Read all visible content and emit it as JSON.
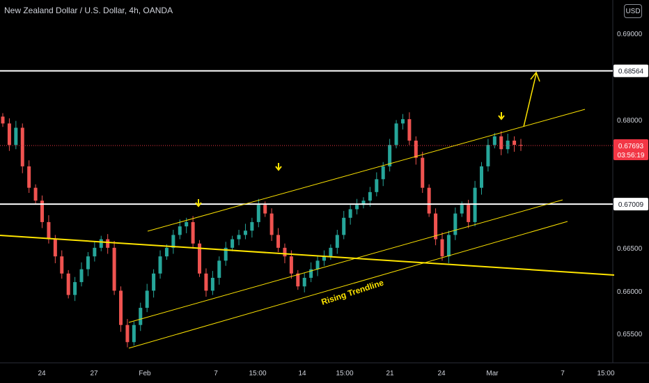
{
  "header": {
    "title": "New Zealand Dollar / U.S. Dollar, 4h, OANDA",
    "currency_button": "USD"
  },
  "price_label": {
    "price": "0.67693",
    "countdown": "03:56:19"
  },
  "colors": {
    "up": "#26a69a",
    "down": "#ef5350",
    "level": "#ffffff",
    "drawing": "#ffe500",
    "current": "#f23645",
    "axis_text": "#d1d4dc"
  },
  "chart_data": {
    "type": "candlestick",
    "title": "New Zealand Dollar / U.S. Dollar, 4h, OANDA",
    "y_ticks": [
      "0.69000",
      "0.68000",
      "0.66500",
      "0.66000",
      "0.65500"
    ],
    "x_ticks": [
      "24",
      "27",
      "Feb",
      "7",
      "15:00",
      "14",
      "15:00",
      "21",
      "24",
      "Mar",
      "7",
      "15:00"
    ],
    "ylim": [
      0.6528,
      0.6922
    ],
    "horizontal_levels": [
      {
        "label": "0.68564",
        "value": 0.68564
      },
      {
        "label": "0.67009",
        "value": 0.67009
      }
    ],
    "current_price": 0.67693,
    "annotations": [
      "Rising Trendline"
    ],
    "ohlc_close_path": [
      0.6795,
      0.677,
      0.679,
      0.6745,
      0.672,
      0.6705,
      0.668,
      0.666,
      0.664,
      0.662,
      0.6595,
      0.661,
      0.6625,
      0.664,
      0.665,
      0.666,
      0.665,
      0.66,
      0.656,
      0.654,
      0.656,
      0.658,
      0.66,
      0.662,
      0.664,
      0.665,
      0.6665,
      0.6675,
      0.668,
      0.6655,
      0.662,
      0.66,
      0.6615,
      0.6635,
      0.665,
      0.666,
      0.6665,
      0.667,
      0.668,
      0.67,
      0.669,
      0.6665,
      0.665,
      0.664,
      0.662,
      0.6605,
      0.6615,
      0.6625,
      0.6635,
      0.664,
      0.665,
      0.6665,
      0.6685,
      0.6695,
      0.67,
      0.6705,
      0.6715,
      0.673,
      0.6745,
      0.677,
      0.6795,
      0.68,
      0.6775,
      0.6755,
      0.672,
      0.669,
      0.666,
      0.664,
      0.6665,
      0.669,
      0.67,
      0.668,
      0.672,
      0.6745,
      0.677,
      0.678,
      0.6765,
      0.6775,
      0.677,
      0.6769
    ]
  }
}
